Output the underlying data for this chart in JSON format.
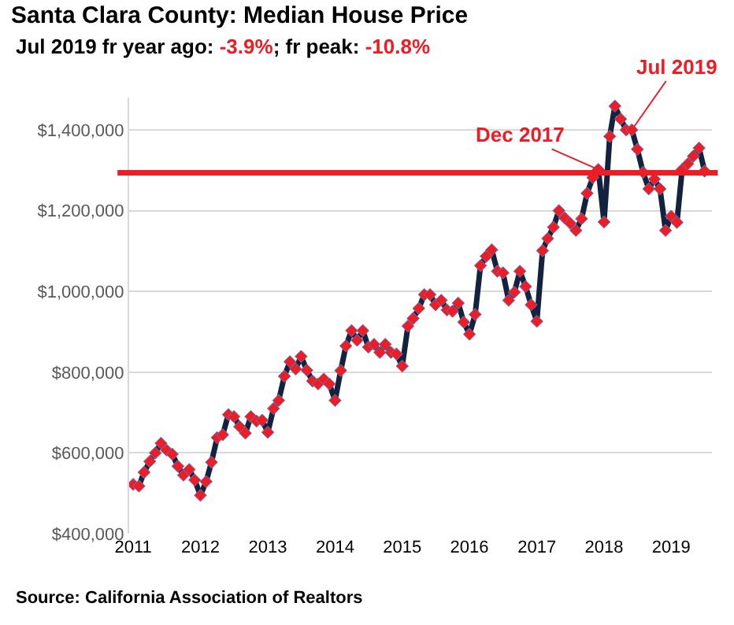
{
  "chart_data": {
    "type": "line",
    "title": "Santa Clara County: Median House Price",
    "subtitle": "Jul 2019 fr year ago: -3.9%; fr peak: -10.8%",
    "x": [
      "2011-01",
      "2011-02",
      "2011-03",
      "2011-04",
      "2011-05",
      "2011-06",
      "2011-07",
      "2011-08",
      "2011-09",
      "2011-10",
      "2011-11",
      "2011-12",
      "2012-01",
      "2012-02",
      "2012-03",
      "2012-04",
      "2012-05",
      "2012-06",
      "2012-07",
      "2012-08",
      "2012-09",
      "2012-10",
      "2012-11",
      "2012-12",
      "2013-01",
      "2013-02",
      "2013-03",
      "2013-04",
      "2013-05",
      "2013-06",
      "2013-07",
      "2013-08",
      "2013-09",
      "2013-10",
      "2013-11",
      "2013-12",
      "2014-01",
      "2014-02",
      "2014-03",
      "2014-04",
      "2014-05",
      "2014-06",
      "2014-07",
      "2014-08",
      "2014-09",
      "2014-10",
      "2014-11",
      "2014-12",
      "2015-01",
      "2015-02",
      "2015-03",
      "2015-04",
      "2015-05",
      "2015-06",
      "2015-07",
      "2015-08",
      "2015-09",
      "2015-10",
      "2015-11",
      "2015-12",
      "2016-01",
      "2016-02",
      "2016-03",
      "2016-04",
      "2016-05",
      "2016-06",
      "2016-07",
      "2016-08",
      "2016-09",
      "2016-10",
      "2016-11",
      "2016-12",
      "2017-01",
      "2017-02",
      "2017-03",
      "2017-04",
      "2017-05",
      "2017-06",
      "2017-07",
      "2017-08",
      "2017-09",
      "2017-10",
      "2017-11",
      "2017-12",
      "2018-01",
      "2018-02",
      "2018-03",
      "2018-04",
      "2018-05",
      "2018-06",
      "2018-07",
      "2018-08",
      "2018-09",
      "2018-10",
      "2018-11",
      "2018-12",
      "2019-01",
      "2019-02",
      "2019-03",
      "2019-04",
      "2019-05",
      "2019-06",
      "2019-07"
    ],
    "series": [
      {
        "color": "#13233f",
        "colors": [
          "#ee1c25",
          "#ee1c25",
          "#ee1c25",
          "#ee1c25",
          "#ee1c25",
          "#ee1c25",
          "#ee1c25",
          "#ee1c25",
          "#ee1c25",
          "#ee1c25",
          "#ee1c25",
          "#ee1c25",
          "#ee1c25",
          "#ee1c25",
          "#ee1c25",
          "#ee1c25",
          "#ee1c25",
          "#ee1c25",
          "#ee1c25",
          "#ee1c25",
          "#ee1c25",
          "#ee1c25",
          "#ee1c25",
          "#ee1c25",
          "#ee1c25",
          "#ee1c25",
          "#ee1c25",
          "#ee1c25",
          "#ee1c25",
          "#ee1c25",
          "#ee1c25",
          "#ee1c25",
          "#ee1c25",
          "#ee1c25",
          "#ee1c25",
          "#ee1c25",
          "#ee1c25",
          "#ee1c25",
          "#ee1c25",
          "#ee1c25",
          "#ee1c25",
          "#ee1c25",
          "#ee1c25",
          "#ee1c25",
          "#ee1c25",
          "#ee1c25",
          "#ee1c25",
          "#ee1c25",
          "#ee1c25",
          "#ee1c25",
          "#ee1c25",
          "#ee1c25",
          "#ee1c25",
          "#ee1c25",
          "#ee1c25",
          "#ee1c25",
          "#ee1c25",
          "#ee1c25",
          "#ee1c25",
          "#ee1c25",
          "#ee1c25",
          "#ee1c25",
          "#ee1c25",
          "#ee1c25",
          "#ee1c25",
          "#ee1c25",
          "#ee1c25",
          "#ee1c25",
          "#ee1c25",
          "#ee1c25",
          "#ee1c25",
          "#ee1c25",
          "#ee1c25",
          "#ee1c25",
          "#ee1c25",
          "#ee1c25",
          "#ee1c25",
          "#ee1c25",
          "#ee1c25",
          "#ee1c25",
          "#ee1c25",
          "#ee1c25",
          "#ee1c25",
          "#ee1c25",
          "#ee1c25",
          "#ee1c25",
          "#ee1c25",
          "#ee1c25",
          "#ee1c25",
          "#ee1c25",
          "#ee1c25",
          "#ee1c25",
          "#ee1c25",
          "#ee1c25",
          "#ee1c25",
          "#ee1c25",
          "#ee1c25",
          "#ee1c25",
          "#ee1c25",
          "#ee1c25",
          "#ee1c25",
          "#ee1c25",
          "#ee1c25"
        ],
        "values": [
          522000,
          518000,
          552000,
          579000,
          600000,
          624000,
          607000,
          597000,
          567000,
          545000,
          559000,
          533000,
          495000,
          529000,
          577000,
          638000,
          645000,
          695000,
          690000,
          665000,
          649000,
          690000,
          679000,
          681000,
          651000,
          710000,
          730000,
          790000,
          826000,
          808000,
          839000,
          805000,
          778000,
          771000,
          783000,
          771000,
          730000,
          804000,
          865000,
          903000,
          879000,
          903000,
          862000,
          869000,
          849000,
          869000,
          849000,
          845000,
          815000,
          914000,
          933000,
          958000,
          992000,
          992000,
          967000,
          978000,
          954000,
          951000,
          971000,
          924000,
          894000,
          943000,
          1064000,
          1087000,
          1103000,
          1050000,
          1046000,
          978000,
          998000,
          1050000,
          1012000,
          967000,
          926000,
          1101000,
          1131000,
          1159000,
          1200000,
          1182000,
          1169000,
          1151000,
          1180000,
          1243000,
          1282000,
          1302000,
          1172000,
          1384000,
          1459000,
          1427000,
          1400000,
          1400000,
          1352000,
          1295000,
          1254000,
          1278000,
          1254000,
          1151000,
          1186000,
          1171000,
          1302000,
          1316000,
          1335000,
          1355000,
          1298000
        ]
      }
    ],
    "xlim": [
      "2010-12-10",
      "2019-08-10"
    ],
    "xticks": [
      {
        "value": "2011-01",
        "label": "2011"
      },
      {
        "value": "2012-01",
        "label": "2012"
      },
      {
        "value": "2013-01",
        "label": "2013"
      },
      {
        "value": "2014-01",
        "label": "2014"
      },
      {
        "value": "2015-01",
        "label": "2015"
      },
      {
        "value": "2016-01",
        "label": "2016"
      },
      {
        "value": "2017-01",
        "label": "2017"
      },
      {
        "value": "2018-01",
        "label": "2018"
      },
      {
        "value": "2019-01",
        "label": "2019"
      }
    ],
    "ylim": [
      400000,
      1480000
    ],
    "yticks": [
      {
        "value": 400000,
        "label": "$400,000"
      },
      {
        "value": 600000,
        "label": "$600,000"
      },
      {
        "value": 800000,
        "label": "$800,000"
      },
      {
        "value": 1000000,
        "label": "$1,000,000"
      },
      {
        "value": 1200000,
        "label": "$1,200,000"
      },
      {
        "value": 1400000,
        "label": "$1,400,000"
      }
    ],
    "grid": "y",
    "marker": "diamond",
    "line_style": "solid",
    "legend": false,
    "ref_lines": [
      {
        "axis": "y",
        "value": 1294000,
        "color": "#ee1c25"
      }
    ],
    "annotations": [
      {
        "text": "Dec 2017",
        "x": "2017-12",
        "y": 1302000
      },
      {
        "text": "Jul 2019",
        "x": "2018-06",
        "y": 1400000
      },
      "Source: California Association of Realtors"
    ]
  }
}
